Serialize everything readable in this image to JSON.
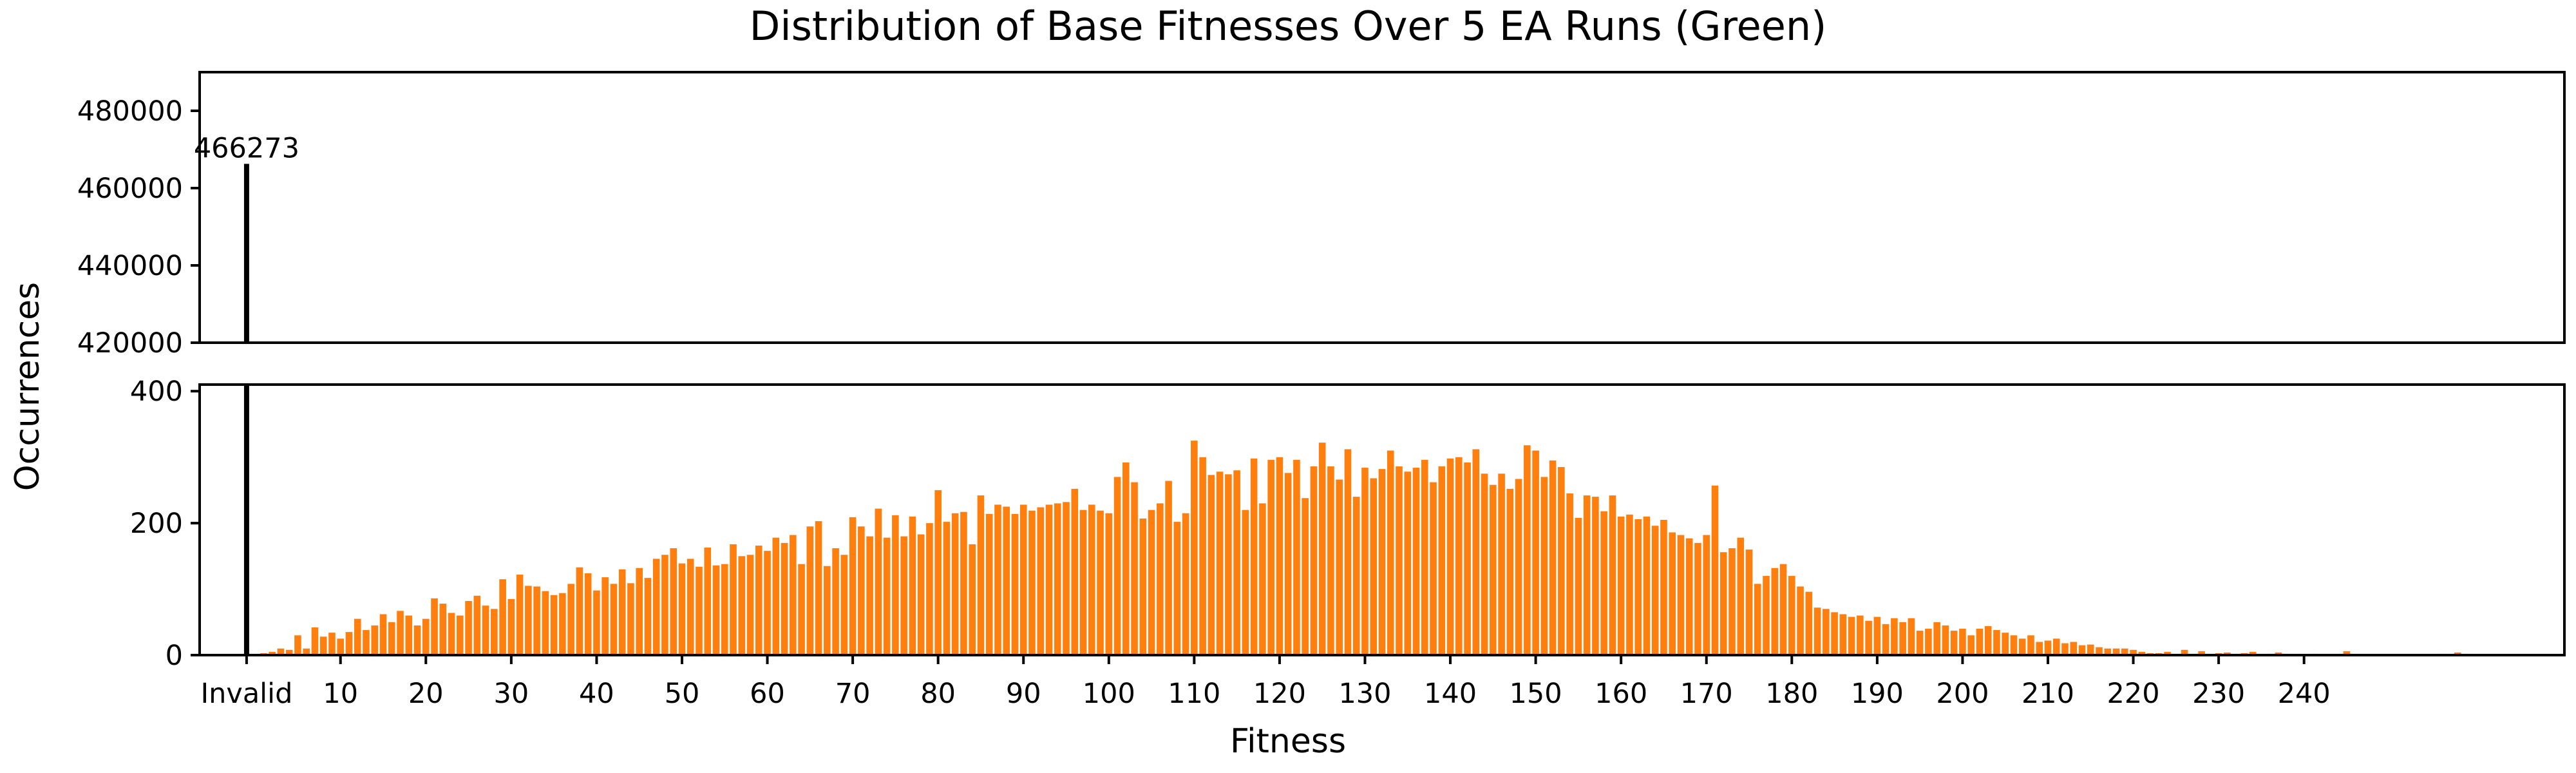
{
  "chart_data": {
    "type": "bar",
    "title": "Distribution of Base Fitnesses Over 5 EA Runs (Green)",
    "xlabel": "Fitness",
    "ylabel": "Occurrences",
    "invalid_label": "Invalid",
    "invalid_value": 466273,
    "invalid_value_label": "466273",
    "top_ylim": [
      420000,
      490000
    ],
    "bottom_ylim": [
      0,
      410
    ],
    "xlim": [
      -5.5,
      271.5
    ],
    "top_yticks": [
      {
        "value": 420000,
        "label": "420000"
      },
      {
        "value": 440000,
        "label": "440000"
      },
      {
        "value": 460000,
        "label": "460000"
      },
      {
        "value": 480000,
        "label": "480000"
      }
    ],
    "bottom_yticks": [
      {
        "value": 0,
        "label": "0"
      },
      {
        "value": 200,
        "label": "200"
      },
      {
        "value": 400,
        "label": "400"
      }
    ],
    "xticks": [
      {
        "value": 0,
        "label": "Invalid"
      },
      {
        "value": 11,
        "label": "10"
      },
      {
        "value": 21,
        "label": "20"
      },
      {
        "value": 31,
        "label": "30"
      },
      {
        "value": 41,
        "label": "40"
      },
      {
        "value": 51,
        "label": "50"
      },
      {
        "value": 61,
        "label": "60"
      },
      {
        "value": 71,
        "label": "70"
      },
      {
        "value": 81,
        "label": "80"
      },
      {
        "value": 91,
        "label": "90"
      },
      {
        "value": 101,
        "label": "100"
      },
      {
        "value": 111,
        "label": "110"
      },
      {
        "value": 121,
        "label": "120"
      },
      {
        "value": 131,
        "label": "130"
      },
      {
        "value": 141,
        "label": "140"
      },
      {
        "value": 151,
        "label": "150"
      },
      {
        "value": 161,
        "label": "160"
      },
      {
        "value": 171,
        "label": "170"
      },
      {
        "value": 181,
        "label": "180"
      },
      {
        "value": 191,
        "label": "190"
      },
      {
        "value": 201,
        "label": "200"
      },
      {
        "value": 211,
        "label": "210"
      },
      {
        "value": 221,
        "label": "220"
      },
      {
        "value": 231,
        "label": "230"
      },
      {
        "value": 241,
        "label": "240"
      }
    ],
    "colors": {
      "invalid_bar": "#000000",
      "valid_bar": "#ff7f0e"
    },
    "fitness_start": 1,
    "values": [
      0,
      3,
      5,
      10,
      8,
      30,
      10,
      42,
      28,
      34,
      25,
      35,
      55,
      38,
      45,
      62,
      50,
      67,
      60,
      45,
      55,
      86,
      78,
      64,
      60,
      82,
      90,
      75,
      70,
      115,
      85,
      122,
      105,
      104,
      97,
      91,
      94,
      108,
      133,
      124,
      98,
      118,
      108,
      130,
      109,
      132,
      117,
      146,
      152,
      162,
      139,
      146,
      134,
      163,
      136,
      138,
      168,
      150,
      152,
      166,
      158,
      178,
      170,
      182,
      138,
      195,
      203,
      135,
      162,
      152,
      209,
      195,
      180,
      222,
      178,
      212,
      180,
      210,
      183,
      200,
      250,
      202,
      215,
      217,
      168,
      242,
      214,
      228,
      225,
      214,
      228,
      219,
      224,
      228,
      230,
      232,
      252,
      220,
      228,
      219,
      215,
      270,
      292,
      262,
      207,
      220,
      230,
      264,
      202,
      215,
      325,
      300,
      273,
      278,
      274,
      280,
      220,
      298,
      230,
      296,
      300,
      276,
      296,
      238,
      286,
      322,
      286,
      266,
      312,
      240,
      284,
      268,
      282,
      310,
      286,
      278,
      284,
      296,
      262,
      286,
      298,
      300,
      292,
      312,
      275,
      258,
      275,
      252,
      267,
      318,
      310,
      270,
      295,
      285,
      245,
      208,
      242,
      240,
      218,
      242,
      210,
      213,
      206,
      210,
      196,
      205,
      186,
      182,
      177,
      170,
      182,
      257,
      156,
      162,
      178,
      160,
      108,
      120,
      132,
      138,
      120,
      104,
      96,
      72,
      70,
      65,
      62,
      58,
      60,
      52,
      58,
      47,
      56,
      50,
      56,
      37,
      40,
      50,
      45,
      37,
      40,
      30,
      40,
      44,
      38,
      34,
      30,
      25,
      30,
      20,
      22,
      25,
      18,
      20,
      15,
      16,
      12,
      10,
      10,
      10,
      8,
      5,
      3,
      3,
      5,
      2,
      8,
      1,
      6,
      0,
      3,
      4,
      0,
      3,
      5,
      0,
      2,
      4,
      2,
      0,
      0,
      2,
      0,
      0,
      0,
      6,
      0,
      0,
      0,
      0,
      0,
      0,
      0,
      0,
      0,
      0,
      2,
      0,
      4,
      2
    ]
  }
}
